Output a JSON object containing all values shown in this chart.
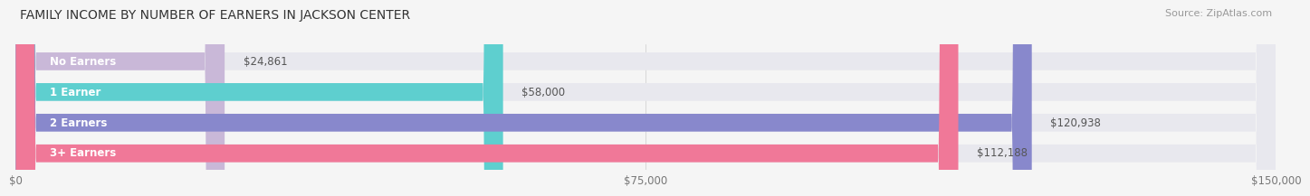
{
  "title": "FAMILY INCOME BY NUMBER OF EARNERS IN JACKSON CENTER",
  "source": "Source: ZipAtlas.com",
  "categories": [
    "No Earners",
    "1 Earner",
    "2 Earners",
    "3+ Earners"
  ],
  "values": [
    24861,
    58000,
    120938,
    112188
  ],
  "labels": [
    "$24,861",
    "$58,000",
    "$120,938",
    "$112,188"
  ],
  "bar_colors": [
    "#c9b8d8",
    "#5ecfcf",
    "#8888cc",
    "#f07898"
  ],
  "bar_bg_color": "#e8e8ee",
  "xlim_max": 150000,
  "xticklabels": [
    "$0",
    "$75,000",
    "$150,000"
  ],
  "title_fontsize": 10,
  "source_fontsize": 8,
  "label_fontsize": 8.5,
  "tick_fontsize": 8.5,
  "bg_color": "#f5f5f5",
  "bar_height": 0.58
}
